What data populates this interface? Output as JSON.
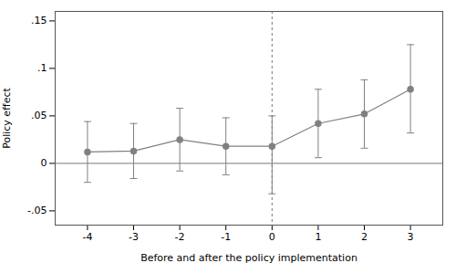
{
  "chart_data": {
    "type": "line",
    "x": [
      -4,
      -3,
      -2,
      -1,
      0,
      1,
      2,
      3
    ],
    "values": [
      0.012,
      0.013,
      0.025,
      0.018,
      0.018,
      0.042,
      0.052,
      0.078
    ],
    "y_upper": [
      0.044,
      0.042,
      0.058,
      0.048,
      0.05,
      0.078,
      0.088,
      0.125
    ],
    "y_lower": [
      -0.02,
      -0.016,
      -0.008,
      -0.012,
      -0.032,
      0.006,
      0.016,
      0.032
    ],
    "color": "#808080",
    "marker": "circle",
    "xlabel": "Before and after the policy implementation",
    "ylabel": "Policy effect",
    "xlim": [
      -4.7,
      3.7
    ],
    "xticks": [
      -4,
      -3,
      -2,
      -1,
      0,
      1,
      2,
      3
    ],
    "ylim": [
      -0.065,
      0.16
    ],
    "yticks": [
      {
        "value": -0.05,
        "label": "-.05"
      },
      0,
      {
        "value": 0.05,
        "label": ".05"
      },
      {
        "value": 0.1,
        "label": ".1"
      },
      {
        "value": 0.15,
        "label": ".15"
      }
    ],
    "hline_y": 0,
    "vline_x": 0,
    "grid": false
  }
}
